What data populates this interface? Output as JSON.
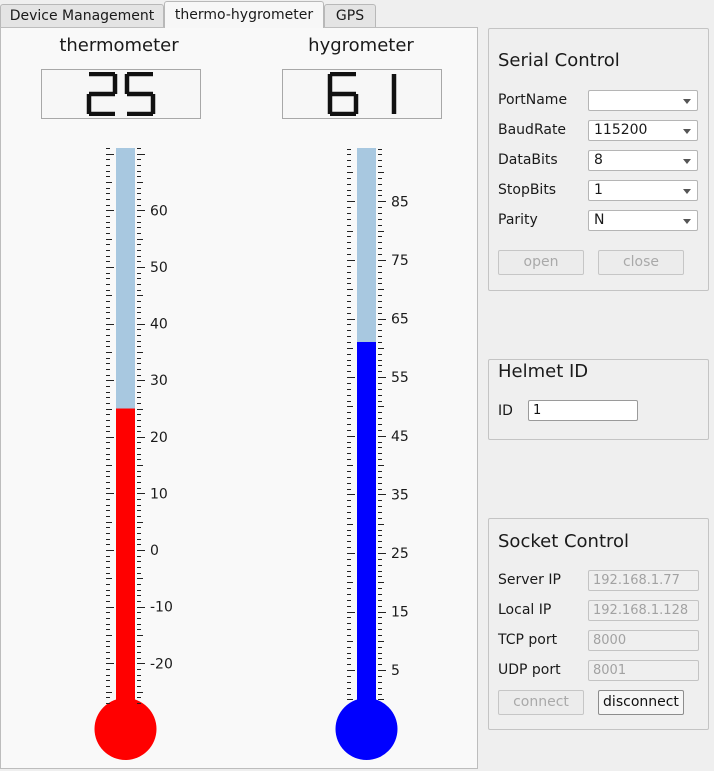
{
  "tabs": [
    {
      "label": "Device Management",
      "active": false
    },
    {
      "label": "thermo-hygrometer",
      "active": true
    },
    {
      "label": "GPS",
      "active": false
    }
  ],
  "thermometer": {
    "title": "thermometer",
    "reading": "25",
    "value": 25,
    "range": [
      -27,
      71
    ],
    "ticks": [
      "60",
      "50",
      "40",
      "30",
      "20",
      "10",
      "0",
      "-10",
      "-20"
    ],
    "fill_color": "#ff0000",
    "track_color": "#a8c8e0"
  },
  "hygrometer": {
    "title": "hygrometer",
    "reading": "61",
    "value": 61,
    "range": [
      -0.6,
      94.1
    ],
    "ticks": [
      "85",
      "75",
      "65",
      "55",
      "45",
      "35",
      "25",
      "15",
      "5"
    ],
    "fill_color": "#0000ff",
    "track_color": "#a8c8e0"
  },
  "serial": {
    "title": "Serial Control",
    "rows": [
      {
        "label": "PortName",
        "value": ""
      },
      {
        "label": "BaudRate",
        "value": "115200"
      },
      {
        "label": "DataBits",
        "value": "8"
      },
      {
        "label": "StopBits",
        "value": "1"
      },
      {
        "label": "Parity",
        "value": "N"
      }
    ],
    "open_label": "open",
    "close_label": "close"
  },
  "helmet": {
    "title": "Helmet ID",
    "id_label": "ID",
    "id_value": "1"
  },
  "socket": {
    "title": "Socket Control",
    "rows": [
      {
        "label": "Server IP",
        "value": "192.168.1.77"
      },
      {
        "label": "Local IP",
        "value": "192.168.1.128"
      },
      {
        "label": "TCP port",
        "value": "8000"
      },
      {
        "label": "UDP port",
        "value": "8001"
      }
    ],
    "connect_label": "connect",
    "disconnect_label": "disconnect"
  }
}
